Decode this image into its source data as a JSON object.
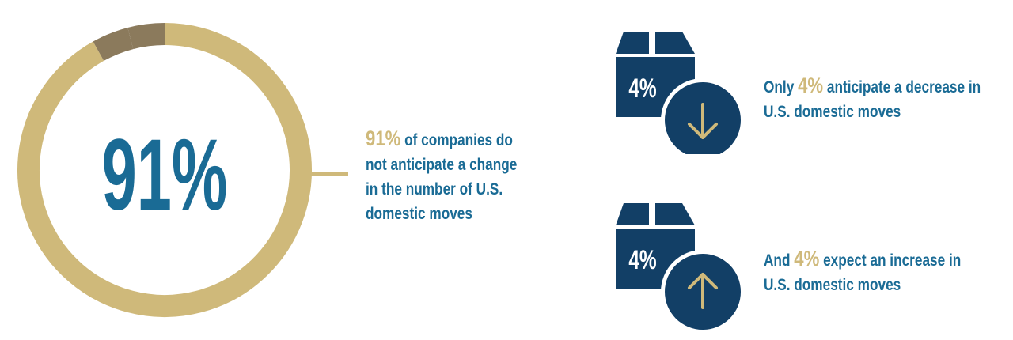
{
  "chart_data": {
    "type": "pie",
    "style": "donut",
    "center_label": "91%",
    "slices": [
      {
        "label": "no change",
        "value": 91
      },
      {
        "label": "decrease",
        "value": 4
      },
      {
        "label": "increase",
        "value": 4
      }
    ],
    "colors": {
      "main": "#cfb97a",
      "dark": "#8b7a5c",
      "text": "#1a6b95",
      "navy": "#123f66",
      "white": "#ffffff"
    }
  },
  "main_stat": {
    "highlight": "91%",
    "line1": "of companies do",
    "line2": "not anticipate a change",
    "line3": "in the number of U.S.",
    "line4": "domestic moves"
  },
  "decrease": {
    "box_label": "4%",
    "icon": "arrow-down-icon",
    "prefix": "Only",
    "highlight": "4%",
    "line1_rest": "anticipate a decrease in",
    "line2": "U.S. domestic moves"
  },
  "increase": {
    "box_label": "4%",
    "icon": "arrow-up-icon",
    "prefix": "And",
    "highlight": "4%",
    "line1_rest": "expect an increase in",
    "line2": "U.S. domestic moves"
  }
}
